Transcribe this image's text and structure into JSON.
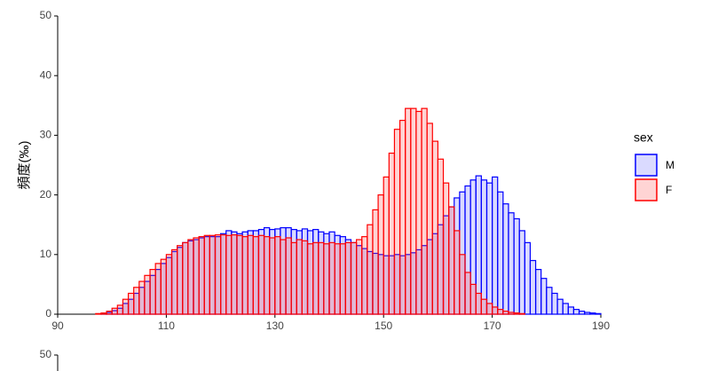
{
  "chart_data": [
    {
      "type": "histogram",
      "ylabel": "頻度(‰)",
      "legend_title": "sex",
      "legend_position": "right",
      "xlim": [
        90,
        190
      ],
      "ylim": [
        0,
        50
      ],
      "xticks": [
        90,
        110,
        130,
        150,
        170,
        190
      ],
      "yticks": [
        0,
        10,
        20,
        30,
        40,
        50
      ],
      "bins": [
        96,
        97,
        98,
        99,
        100,
        101,
        102,
        103,
        104,
        105,
        106,
        107,
        108,
        109,
        110,
        111,
        112,
        113,
        114,
        115,
        116,
        117,
        118,
        119,
        120,
        121,
        122,
        123,
        124,
        125,
        126,
        127,
        128,
        129,
        130,
        131,
        132,
        133,
        134,
        135,
        136,
        137,
        138,
        139,
        140,
        141,
        142,
        143,
        144,
        145,
        146,
        147,
        148,
        149,
        150,
        151,
        152,
        153,
        154,
        155,
        156,
        157,
        158,
        159,
        160,
        161,
        162,
        163,
        164,
        165,
        166,
        167,
        168,
        169,
        170,
        171,
        172,
        173,
        174,
        175,
        176,
        177,
        178,
        179,
        180,
        181,
        182,
        183,
        184,
        185,
        186,
        187,
        188,
        189,
        190
      ],
      "series": [
        {
          "name": "M",
          "color": "#0000ff",
          "fill": "rgba(70,70,255,0.2)",
          "values": [
            0,
            0,
            0.1,
            0.3,
            0.6,
            1,
            1.8,
            2.5,
            3.5,
            4.5,
            5.5,
            6.5,
            7.5,
            8.5,
            9.5,
            10.5,
            11.2,
            12,
            12.3,
            12.5,
            12.8,
            13,
            13,
            13,
            13.5,
            14,
            13.8,
            13.5,
            13.8,
            14,
            14,
            14.2,
            14.5,
            14.2,
            14.3,
            14.5,
            14.5,
            14.2,
            14,
            14.3,
            14,
            14.2,
            13.8,
            13.5,
            13.8,
            13.2,
            13,
            12.5,
            12,
            11.5,
            11,
            10.5,
            10.2,
            10,
            9.8,
            9.8,
            10,
            9.8,
            10,
            10.3,
            10.8,
            11.5,
            12.5,
            13.5,
            15,
            16.5,
            18,
            19.5,
            20.5,
            21.5,
            22.5,
            23.2,
            22.5,
            22,
            23,
            20.5,
            18.5,
            17,
            16,
            14,
            12,
            9,
            7.5,
            6,
            4.5,
            3.5,
            2.5,
            1.8,
            1.2,
            0.8,
            0.5,
            0.3,
            0.2,
            0.1
          ]
        },
        {
          "name": "F",
          "color": "#ff0000",
          "fill": "rgba(255,60,60,0.22)",
          "values": [
            0,
            0.1,
            0.2,
            0.5,
            1,
            1.5,
            2.5,
            3.5,
            4.5,
            5.5,
            6.5,
            7.5,
            8.5,
            9.2,
            10,
            10.8,
            11.5,
            12,
            12.5,
            12.8,
            13,
            13.2,
            13.2,
            13.3,
            13.3,
            13.2,
            13.3,
            13.2,
            13,
            13.2,
            13,
            13.2,
            13,
            12.8,
            13,
            12.5,
            12.8,
            12,
            12.5,
            12.3,
            11.8,
            12,
            12,
            11.8,
            12,
            11.8,
            11.8,
            12,
            12,
            12.5,
            13,
            15,
            17.5,
            20,
            23,
            27,
            31,
            32.5,
            34.5,
            34.5,
            34,
            34.5,
            32,
            29,
            26,
            22,
            18,
            14,
            10,
            7,
            5,
            3.5,
            2.5,
            1.8,
            1.2,
            0.8,
            0.5,
            0.3,
            0.2,
            0.1,
            0,
            0,
            0,
            0,
            0,
            0,
            0,
            0,
            0,
            0,
            0,
            0,
            0,
            0
          ]
        }
      ]
    },
    {
      "type": "histogram",
      "ylim": [
        0,
        50
      ],
      "yticks": [
        50
      ]
    }
  ]
}
